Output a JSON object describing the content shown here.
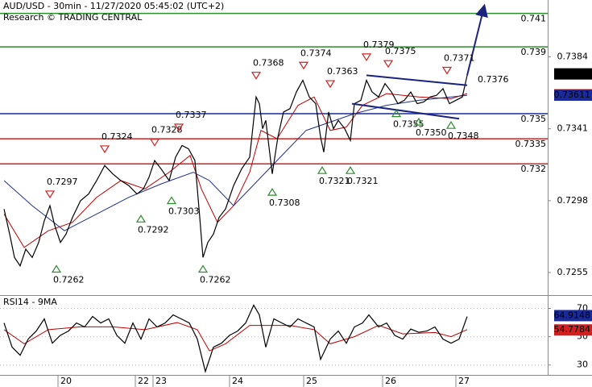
{
  "chart_data": [
    {
      "type": "line",
      "title": "AUD/USD - 30min - 11/27/2020 05:45:02 (UTC+2)",
      "subtitle": "Research © TRADING CENTRAL",
      "xlim": [
        0,
        340
      ],
      "ylim": [
        0.7242,
        0.7418
      ],
      "yticks": [
        0.7255,
        0.7298,
        0.7341,
        0.7384
      ],
      "x": [
        2.5,
        6,
        9,
        12.5,
        16,
        20,
        24,
        27.5,
        31,
        34,
        37.5,
        41,
        45,
        50,
        55,
        60,
        65,
        70,
        75,
        80,
        85,
        89,
        92.5,
        96,
        100,
        105,
        109,
        113,
        117,
        121,
        124,
        126,
        129,
        132.5,
        136,
        140,
        145,
        150,
        155,
        159,
        161,
        163,
        165,
        169,
        172.5,
        176,
        180,
        184,
        188,
        192,
        196,
        199,
        201,
        204,
        207,
        210,
        214,
        217.5,
        220,
        224,
        227.5,
        231,
        235,
        239,
        243,
        247,
        251,
        255,
        259,
        263,
        267,
        271,
        275,
        279,
        283,
        287,
        290
      ],
      "series": [
        {
          "color": "#000000",
          "values": [
            0.7293,
            0.7278,
            0.7264,
            0.7259,
            0.7269,
            0.7264,
            0.7273,
            0.7286,
            0.7295,
            0.7283,
            0.7273,
            0.7278,
            0.7288,
            0.7298,
            0.7302,
            0.731,
            0.7319,
            0.7314,
            0.731,
            0.7307,
            0.7302,
            0.7305,
            0.7312,
            0.7322,
            0.7317,
            0.731,
            0.7324,
            0.7331,
            0.7329,
            0.7322,
            0.7288,
            0.7264,
            0.7273,
            0.7278,
            0.7288,
            0.7293,
            0.7307,
            0.7317,
            0.7324,
            0.736,
            0.7356,
            0.7341,
            0.7346,
            0.7314,
            0.7336,
            0.7351,
            0.7353,
            0.7363,
            0.737,
            0.736,
            0.7356,
            0.7336,
            0.7327,
            0.7351,
            0.7341,
            0.7346,
            0.7341,
            0.7334,
            0.7356,
            0.7358,
            0.737,
            0.7363,
            0.736,
            0.7368,
            0.7363,
            0.7356,
            0.7358,
            0.7363,
            0.7356,
            0.7357,
            0.736,
            0.7361,
            0.7365,
            0.7356,
            0.7358,
            0.736,
            0.7373
          ]
        }
      ],
      "moving_averages": [
        {
          "color": "#c00000",
          "x": [
            2.5,
            15,
            30,
            45,
            60,
            75,
            90,
            105,
            118,
            125,
            135,
            145,
            155,
            162,
            172,
            185,
            195,
            205,
            215,
            225,
            240,
            260,
            280,
            290
          ],
          "values": [
            0.729,
            0.727,
            0.728,
            0.7285,
            0.73,
            0.731,
            0.7305,
            0.7315,
            0.7325,
            0.7305,
            0.7285,
            0.7295,
            0.7315,
            0.734,
            0.7335,
            0.7355,
            0.736,
            0.734,
            0.7342,
            0.7355,
            0.7362,
            0.736,
            0.7359,
            0.7362
          ]
        },
        {
          "color": "#1f2f8f",
          "x": [
            2.5,
            20,
            40,
            60,
            80,
            100,
            120,
            130,
            145,
            160,
            175,
            190,
            205,
            220,
            240,
            260,
            280,
            290
          ],
          "values": [
            0.731,
            0.7295,
            0.728,
            0.729,
            0.73,
            0.7308,
            0.7315,
            0.731,
            0.7295,
            0.731,
            0.7325,
            0.734,
            0.7345,
            0.735,
            0.7355,
            0.7358,
            0.736,
            0.7361
          ]
        }
      ],
      "trendlines": [
        {
          "color": "#1a237e",
          "x": [
            227.5,
            290
          ],
          "values": [
            0.7373,
            0.7367
          ]
        },
        {
          "color": "#1a237e",
          "x": [
            218.5,
            285
          ],
          "values": [
            0.7356,
            0.7347
          ]
        }
      ],
      "arrow": {
        "color": "#1a237e",
        "x": [
          290,
          300
        ],
        "values": [
          0.7373,
          0.7412
        ]
      },
      "levels": [
        {
          "value": 0.741,
          "color": "#2e8b2e"
        },
        {
          "value": 0.739,
          "color": "#2e8b2e"
        },
        {
          "value": 0.735,
          "color": "#1a2a9a"
        },
        {
          "value": 0.7335,
          "color": "#d02020"
        },
        {
          "value": 0.732,
          "color": "#d02020"
        }
      ],
      "price_markers": [
        {
          "value": 0.73738,
          "color": "#000000"
        },
        {
          "value": 0.73613,
          "color": "#d02020"
        },
        {
          "value": 0.73611,
          "color": "#1a2a9a"
        }
      ],
      "pivots": {
        "x": [
          31,
          65,
          96,
          111,
          159,
          188.5,
          205,
          227.5,
          241,
          277.5,
          297.5,
          35,
          87.5,
          106.5,
          126,
          169,
          200,
          217.5,
          246,
          260,
          280
        ],
        "values": [
          0.7297,
          0.7324,
          0.7328,
          0.7337,
          0.7368,
          0.7374,
          0.7363,
          0.7379,
          0.7375,
          0.7371,
          0.7376,
          0.7262,
          0.7292,
          0.7303,
          0.7262,
          0.7308,
          0.7321,
          0.7321,
          0.7355,
          0.735,
          0.7348
        ],
        "value_labels": [
          "0.7297",
          "0.7324",
          "0.7328",
          "0.7337",
          "0.7368",
          "0.7374",
          "0.7363",
          "0.7379",
          "0.7375",
          "0.7371",
          "0.7376",
          "0.7262",
          "0.7292",
          "0.7303",
          "0.7262",
          "0.7308",
          "0.7321",
          "0.7321",
          "0.7355",
          "0.7350",
          "0.7348"
        ],
        "kinds": [
          "top",
          "top",
          "top",
          "top",
          "top",
          "top",
          "top",
          "top",
          "top",
          "top",
          "label",
          "bottom",
          "bottom",
          "bottom",
          "bottom",
          "bottom",
          "bottom",
          "bottom",
          "bottom",
          "bottom",
          "bottom"
        ]
      }
    },
    {
      "type": "line",
      "title": "RSI14 - 9MA",
      "xlim": [
        0,
        340
      ],
      "ylim": [
        23,
        76
      ],
      "yticks": [
        30,
        50,
        70
      ],
      "grid": true,
      "xticks": [
        {
          "value": 36,
          "label": "20"
        },
        {
          "value": 84,
          "label": "22"
        },
        {
          "value": 95,
          "label": "23"
        },
        {
          "value": 142.5,
          "label": "24"
        },
        {
          "value": 188.5,
          "label": "25"
        },
        {
          "value": 237.5,
          "label": "26"
        },
        {
          "value": 283,
          "label": "27"
        }
      ],
      "x": [
        2.5,
        7.5,
        12.5,
        17.5,
        22.5,
        27.5,
        32.5,
        37.5,
        42.5,
        47.5,
        52.5,
        57.5,
        62.5,
        67.5,
        72.5,
        77.5,
        82.5,
        87.5,
        92.5,
        97.5,
        102.5,
        107.5,
        112.5,
        117.5,
        122.5,
        127.5,
        132.5,
        137.5,
        142.5,
        147.5,
        152.5,
        157.5,
        161,
        165,
        170,
        175,
        180,
        185,
        190,
        195,
        199,
        205,
        210,
        215,
        220,
        225,
        229,
        235,
        240,
        245,
        250,
        255,
        260,
        265,
        270,
        275,
        280,
        285,
        290
      ],
      "series": [
        {
          "color": "#000000",
          "values": [
            59.7,
            42.6,
            36.9,
            48.3,
            54,
            62.6,
            45.4,
            51,
            54,
            59.7,
            56.9,
            64.3,
            59.7,
            62.6,
            51,
            45.4,
            59.7,
            48.3,
            62.6,
            56.9,
            59.7,
            65.4,
            62.6,
            59.7,
            48.3,
            25.4,
            42.6,
            45.4,
            51,
            54,
            59.7,
            72.3,
            65.4,
            42.6,
            62.6,
            59.7,
            56.9,
            62.6,
            59.7,
            56.9,
            34,
            48.3,
            54,
            45.4,
            56.9,
            59.7,
            65.4,
            56.9,
            59.7,
            51,
            48.3,
            55.4,
            53.1,
            54,
            56.9,
            48.3,
            45.4,
            48.3,
            64.3
          ]
        }
      ],
      "moving_averages": [
        {
          "color": "#c00000",
          "x": [
            2.5,
            15,
            30,
            50,
            70,
            90,
            110,
            122.5,
            130,
            140,
            155,
            165,
            180,
            195,
            205,
            220,
            235,
            250,
            270,
            280,
            290
          ],
          "values": [
            55,
            45,
            55,
            57,
            57,
            55,
            60,
            55,
            40,
            45,
            58,
            58,
            58,
            55,
            45,
            50,
            58,
            52,
            53,
            50,
            55
          ]
        }
      ],
      "price_markers": [
        {
          "value": 64.9148,
          "color": "#1a2a9a"
        },
        {
          "value": 54.7784,
          "color": "#d02020"
        }
      ]
    }
  ]
}
